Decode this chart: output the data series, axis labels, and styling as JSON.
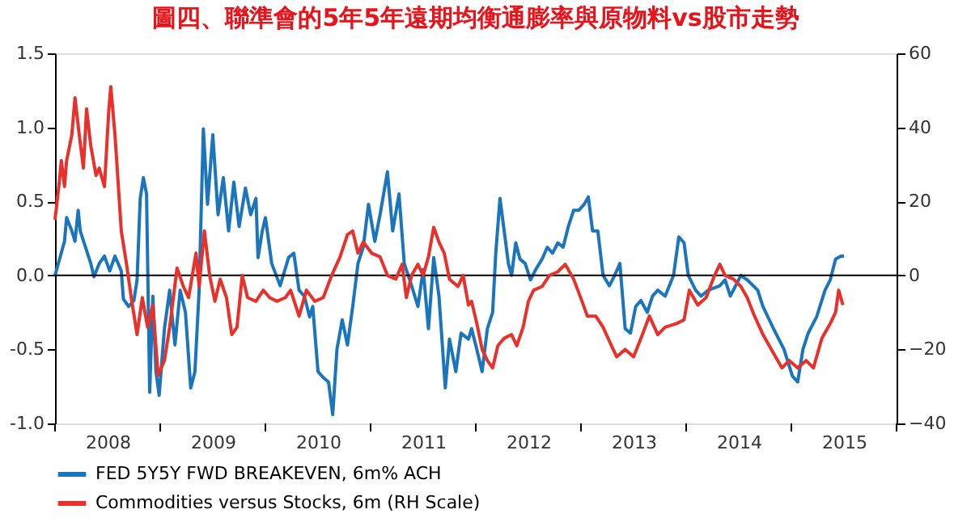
{
  "chart_data": {
    "type": "line",
    "title": "圖四、聯準會的5年5年遠期均衡通膨率與原物料vs股市走勢",
    "xlim": [
      2008,
      2016
    ],
    "xticks": [
      {
        "value": 2008,
        "label": null
      },
      {
        "value": 2009,
        "label": null
      },
      {
        "value": 2010,
        "label": null
      },
      {
        "value": 2011,
        "label": null
      },
      {
        "value": 2012,
        "label": null
      },
      {
        "value": 2013,
        "label": null
      },
      {
        "value": 2014,
        "label": null
      },
      {
        "value": 2015,
        "label": null
      },
      {
        "value": 2016,
        "label": null
      },
      {
        "value": 2008.5,
        "label": "2008"
      },
      {
        "value": 2009.5,
        "label": "2009"
      },
      {
        "value": 2010.5,
        "label": "2010"
      },
      {
        "value": 2011.5,
        "label": "2011"
      },
      {
        "value": 2012.5,
        "label": "2012"
      },
      {
        "value": 2013.5,
        "label": "2013"
      },
      {
        "value": 2014.5,
        "label": "2014"
      },
      {
        "value": 2015.5,
        "label": "2015"
      }
    ],
    "ylim": [
      -1.0,
      1.5
    ],
    "yticks": [
      {
        "value": -1,
        "label": "-1.0"
      },
      {
        "value": -0.5,
        "label": "-0.5"
      },
      {
        "value": 0,
        "label": "0.0"
      },
      {
        "value": 0.5,
        "label": "0.5"
      },
      {
        "value": 1,
        "label": "1.0"
      },
      {
        "value": 1.5,
        "label": "1.5"
      }
    ],
    "y2lim": [
      -40,
      60
    ],
    "y2ticks": [
      -40,
      -20,
      0,
      20,
      40,
      60
    ],
    "ref_lines": [
      {
        "axis": "y",
        "value": 0,
        "color": "#000000"
      }
    ],
    "grid": false,
    "legend": "bottom left",
    "line_style": "solid",
    "marker": "none",
    "series": [
      {
        "name": "FED 5Y5Y FWD BREAKEVEN, 6m% ACH",
        "color": "#1a75bc",
        "x": [
          2008.0,
          2008.09,
          2008.11,
          2008.16,
          2008.19,
          2008.22,
          2008.24,
          2008.29,
          2008.34,
          2008.37,
          2008.42,
          2008.47,
          2008.52,
          2008.57,
          2008.63,
          2008.65,
          2008.7,
          2008.75,
          2008.78,
          2008.81,
          2008.84,
          2008.87,
          2008.9,
          2008.93,
          2008.96,
          2008.99,
          2009.04,
          2009.09,
          2009.14,
          2009.19,
          2009.24,
          2009.29,
          2009.33,
          2009.37,
          2009.41,
          2009.45,
          2009.5,
          2009.55,
          2009.6,
          2009.65,
          2009.7,
          2009.75,
          2009.81,
          2009.86,
          2009.91,
          2009.93,
          2009.97,
          2010.0,
          2010.06,
          2010.14,
          2010.22,
          2010.27,
          2010.32,
          2010.37,
          2010.42,
          2010.45,
          2010.5,
          2010.55,
          2010.6,
          2010.64,
          2010.68,
          2010.73,
          2010.78,
          2010.83,
          2010.88,
          2010.93,
          2010.98,
          2011.04,
          2011.09,
          2011.16,
          2011.21,
          2011.27,
          2011.32,
          2011.39,
          2011.45,
          2011.5,
          2011.55,
          2011.6,
          2011.65,
          2011.71,
          2011.75,
          2011.81,
          2011.86,
          2011.93,
          2011.96,
          2012.01,
          2012.06,
          2012.11,
          2012.16,
          2012.19,
          2012.23,
          2012.27,
          2012.31,
          2012.34,
          2012.38,
          2012.42,
          2012.47,
          2012.52,
          2012.57,
          2012.63,
          2012.68,
          2012.73,
          2012.78,
          2012.83,
          2012.88,
          2012.93,
          2012.98,
          2013.03,
          2013.07,
          2013.11,
          2013.16,
          2013.21,
          2013.27,
          2013.32,
          2013.37,
          2013.42,
          2013.47,
          2013.52,
          2013.57,
          2013.63,
          2013.68,
          2013.73,
          2013.8,
          2013.88,
          2013.93,
          2013.98,
          2014.02,
          2014.09,
          2014.14,
          2014.21,
          2014.32,
          2014.37,
          2014.42,
          2014.52,
          2014.58,
          2014.68,
          2014.73,
          2014.83,
          2014.93,
          2015.01,
          2015.06,
          2015.11,
          2015.16,
          2015.24,
          2015.32,
          2015.37,
          2015.42,
          2015.47,
          2015.5
        ],
        "values": [
          0.0,
          0.23,
          0.39,
          0.3,
          0.23,
          0.44,
          0.3,
          0.19,
          0.08,
          -0.01,
          0.08,
          0.13,
          0.03,
          0.13,
          0.03,
          -0.16,
          -0.21,
          -0.17,
          -0.03,
          0.52,
          0.66,
          0.55,
          -0.79,
          -0.14,
          -0.65,
          -0.81,
          -0.36,
          -0.1,
          -0.47,
          -0.1,
          -0.25,
          -0.76,
          -0.65,
          -0.1,
          0.99,
          0.48,
          0.95,
          0.41,
          0.66,
          0.3,
          0.63,
          0.33,
          0.59,
          0.41,
          0.52,
          0.12,
          0.3,
          0.39,
          0.08,
          -0.07,
          0.12,
          0.15,
          -0.1,
          -0.14,
          -0.28,
          -0.21,
          -0.65,
          -0.69,
          -0.72,
          -0.94,
          -0.5,
          -0.3,
          -0.47,
          -0.21,
          0.08,
          0.19,
          0.48,
          0.23,
          0.41,
          0.7,
          0.3,
          0.55,
          0.08,
          -0.07,
          -0.21,
          0.04,
          -0.36,
          0.12,
          -0.14,
          -0.76,
          -0.43,
          -0.65,
          -0.39,
          -0.43,
          -0.36,
          -0.5,
          -0.65,
          -0.36,
          -0.25,
          0.15,
          0.52,
          0.3,
          0.08,
          0.0,
          0.22,
          0.11,
          0.08,
          -0.03,
          0.04,
          0.11,
          0.19,
          0.15,
          0.22,
          0.19,
          0.33,
          0.44,
          0.44,
          0.48,
          0.53,
          0.3,
          0.3,
          0.0,
          -0.07,
          0.0,
          0.08,
          -0.36,
          -0.39,
          -0.21,
          -0.17,
          -0.25,
          -0.14,
          -0.1,
          -0.14,
          0.0,
          0.26,
          0.22,
          0.0,
          -0.1,
          -0.14,
          -0.1,
          -0.07,
          -0.03,
          -0.14,
          0.0,
          -0.03,
          -0.1,
          -0.21,
          -0.36,
          -0.5,
          -0.68,
          -0.72,
          -0.5,
          -0.39,
          -0.28,
          -0.1,
          -0.03,
          0.11,
          0.13,
          0.13
        ]
      },
      {
        "name": "Commodities versus Stocks, 6m (RH Scale)",
        "color": "#e8312a",
        "axis": "y2",
        "x": [
          2008.0,
          2008.04,
          2008.06,
          2008.09,
          2008.11,
          2008.16,
          2008.19,
          2008.23,
          2008.27,
          2008.3,
          2008.34,
          2008.39,
          2008.42,
          2008.47,
          2008.51,
          2008.53,
          2008.57,
          2008.63,
          2008.68,
          2008.73,
          2008.78,
          2008.83,
          2008.88,
          2008.93,
          2008.98,
          2009.04,
          2009.09,
          2009.16,
          2009.22,
          2009.27,
          2009.34,
          2009.37,
          2009.42,
          2009.47,
          2009.52,
          2009.57,
          2009.63,
          2009.68,
          2009.73,
          2009.78,
          2009.83,
          2009.91,
          2009.98,
          2010.04,
          2010.11,
          2010.19,
          2010.24,
          2010.32,
          2010.39,
          2010.47,
          2010.55,
          2010.63,
          2010.71,
          2010.78,
          2010.83,
          2010.88,
          2010.93,
          2011.01,
          2011.09,
          2011.16,
          2011.24,
          2011.3,
          2011.34,
          2011.39,
          2011.45,
          2011.5,
          2011.55,
          2011.6,
          2011.65,
          2011.7,
          2011.75,
          2011.83,
          2011.88,
          2011.93,
          2011.96,
          2012.01,
          2012.06,
          2012.11,
          2012.16,
          2012.21,
          2012.27,
          2012.34,
          2012.39,
          2012.45,
          2012.5,
          2012.55,
          2012.63,
          2012.7,
          2012.78,
          2012.85,
          2012.93,
          2013.01,
          2013.06,
          2013.14,
          2013.21,
          2013.29,
          2013.34,
          2013.42,
          2013.5,
          2013.57,
          2013.65,
          2013.73,
          2013.8,
          2013.91,
          2013.98,
          2014.03,
          2014.11,
          2014.19,
          2014.27,
          2014.32,
          2014.37,
          2014.45,
          2014.52,
          2014.58,
          2014.65,
          2014.73,
          2014.81,
          2014.91,
          2014.98,
          2015.06,
          2015.14,
          2015.21,
          2015.29,
          2015.37,
          2015.42,
          2015.45,
          2015.49
        ],
        "values": [
          15,
          25,
          31,
          24,
          31,
          38,
          48,
          38,
          29,
          45,
          35,
          27,
          29,
          24,
          44,
          51,
          38,
          12,
          3,
          -7,
          -16,
          -6,
          -14,
          -8,
          -27,
          -23,
          -14,
          2,
          -3,
          -6,
          6,
          -3,
          12,
          0,
          -7,
          -1,
          -6,
          -16,
          -14,
          0,
          -6,
          -7,
          -4,
          -6,
          -7,
          -6,
          -4,
          -11,
          -4,
          -7,
          -6,
          0,
          5,
          11,
          12,
          6,
          9,
          6,
          5,
          0,
          -1,
          3,
          -6,
          0,
          3,
          0,
          5,
          13,
          9,
          6,
          -1,
          -3,
          0,
          -8,
          -7,
          -13,
          -20,
          -23,
          -25,
          -19,
          -17,
          -16,
          -19,
          -14,
          -7,
          -4,
          -3,
          0,
          1,
          3,
          -1,
          -7,
          -11,
          -11,
          -14,
          -19,
          -22,
          -20,
          -22,
          -17,
          -11,
          -16,
          -14,
          -13,
          -12,
          -4,
          -8,
          -6,
          0,
          3,
          0,
          -1,
          -3,
          -6,
          -11,
          -16,
          -20,
          -25,
          -23,
          -25,
          -23,
          -25,
          -17,
          -13,
          -10,
          -4,
          -8
        ]
      }
    ]
  }
}
